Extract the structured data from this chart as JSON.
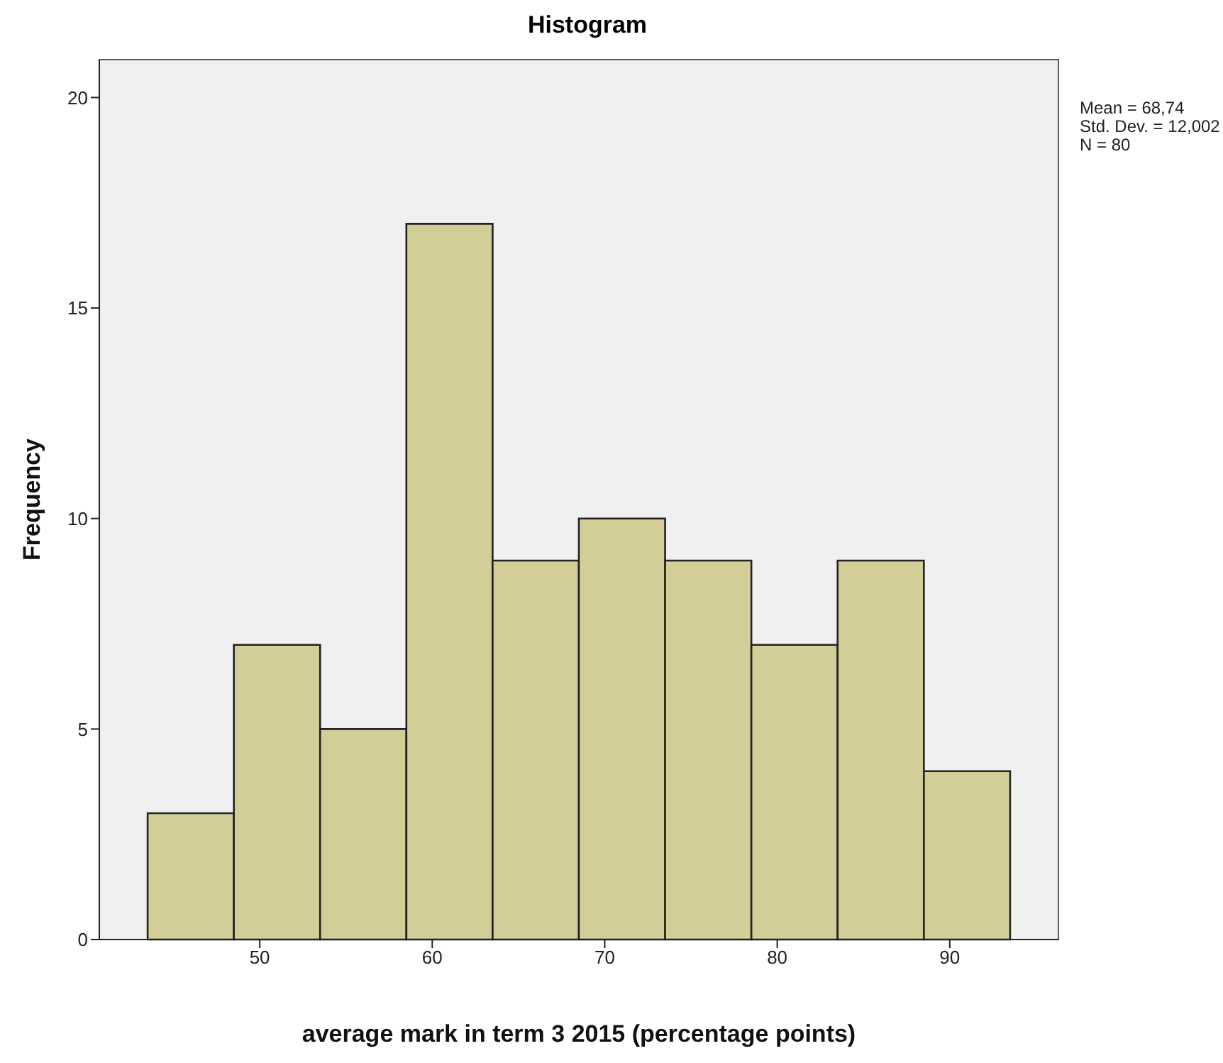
{
  "chart_data": {
    "type": "histogram",
    "title": "Histogram",
    "xlabel": "average mark in term 3 2015 (percentage points)",
    "ylabel": "Frequency",
    "bins": [
      43.5,
      48.5,
      53.5,
      58.5,
      63.5,
      68.5,
      73.5,
      78.5,
      83.5,
      88.5,
      93.5
    ],
    "values": [
      3,
      7,
      5,
      17,
      9,
      10,
      9,
      7,
      9,
      4
    ],
    "color": "#d3ce98",
    "xlim": [
      40.7,
      96.3
    ],
    "xticks": [
      50,
      60,
      70,
      80,
      90
    ],
    "ylim": [
      0,
      20.9
    ],
    "yticks": [
      0,
      5,
      10,
      15,
      20
    ],
    "annotations": [
      "Mean = 68,74",
      "Std. Dev. = 12,002",
      "N = 80"
    ]
  }
}
